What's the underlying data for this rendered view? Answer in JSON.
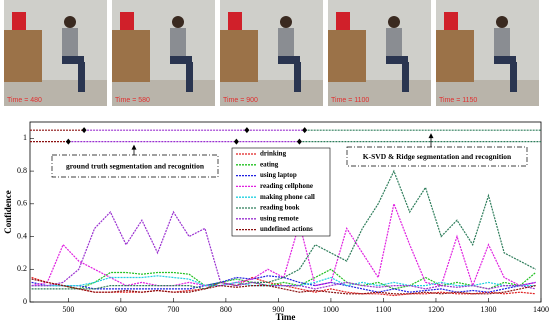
{
  "frames": [
    {
      "label": "Time = 480"
    },
    {
      "label": "Time = 580"
    },
    {
      "label": "Time = 900"
    },
    {
      "label": "Time = 1100"
    },
    {
      "label": "Time = 1150"
    }
  ],
  "chart_data": {
    "type": "line",
    "x_label": "Time",
    "y_label": "Confidence",
    "xlim": [
      427,
      1400
    ],
    "xticks": [
      500,
      600,
      700,
      800,
      900,
      1000,
      1100,
      1200,
      1300,
      1400
    ],
    "ylim": [
      0,
      1.1
    ],
    "yticks": [
      0,
      0.2,
      0.4,
      0.6,
      0.8,
      1
    ],
    "x": [
      430,
      460,
      490,
      520,
      550,
      580,
      610,
      640,
      670,
      700,
      730,
      760,
      790,
      820,
      850,
      880,
      910,
      940,
      970,
      1000,
      1030,
      1060,
      1090,
      1120,
      1150,
      1180,
      1210,
      1240,
      1270,
      1300,
      1330,
      1360,
      1390
    ],
    "series": [
      {
        "name": "drinking",
        "color": "#e02020",
        "values": [
          0.15,
          0.12,
          0.1,
          0.08,
          0.06,
          0.06,
          0.06,
          0.06,
          0.07,
          0.06,
          0.07,
          0.08,
          0.12,
          0.1,
          0.15,
          0.12,
          0.1,
          0.08,
          0.06,
          0.08,
          0.06,
          0.05,
          0.05,
          0.04,
          0.05,
          0.05,
          0.06,
          0.05,
          0.05,
          0.06,
          0.05,
          0.06,
          0.05
        ]
      },
      {
        "name": "eating",
        "color": "#22c022",
        "values": [
          0.1,
          0.1,
          0.1,
          0.08,
          0.12,
          0.18,
          0.18,
          0.17,
          0.18,
          0.18,
          0.17,
          0.1,
          0.12,
          0.14,
          0.12,
          0.1,
          0.12,
          0.1,
          0.15,
          0.2,
          0.12,
          0.1,
          0.12,
          0.08,
          0.1,
          0.15,
          0.1,
          0.12,
          0.1,
          0.08,
          0.12,
          0.1,
          0.18
        ]
      },
      {
        "name": "using laptop",
        "color": "#2020e0",
        "values": [
          0.12,
          0.1,
          0.1,
          0.1,
          0.08,
          0.08,
          0.08,
          0.08,
          0.08,
          0.08,
          0.08,
          0.1,
          0.12,
          0.15,
          0.14,
          0.16,
          0.15,
          0.12,
          0.1,
          0.12,
          0.1,
          0.08,
          0.06,
          0.08,
          0.06,
          0.07,
          0.08,
          0.06,
          0.07,
          0.06,
          0.08,
          0.1,
          0.12
        ]
      },
      {
        "name": "reading cellphone",
        "color": "#e020e0",
        "values": [
          0.1,
          0.12,
          0.35,
          0.25,
          0.2,
          0.15,
          0.1,
          0.12,
          0.1,
          0.1,
          0.12,
          0.1,
          0.1,
          0.12,
          0.14,
          0.2,
          0.15,
          0.48,
          0.1,
          0.12,
          0.45,
          0.3,
          0.15,
          0.6,
          0.35,
          0.12,
          0.1,
          0.4,
          0.1,
          0.35,
          0.15,
          0.1,
          0.12
        ]
      },
      {
        "name": "making phone call",
        "color": "#20d0e0",
        "values": [
          0.1,
          0.1,
          0.1,
          0.1,
          0.12,
          0.15,
          0.15,
          0.15,
          0.16,
          0.15,
          0.14,
          0.1,
          0.1,
          0.12,
          0.1,
          0.1,
          0.1,
          0.1,
          0.12,
          0.15,
          0.1,
          0.12,
          0.1,
          0.12,
          0.1,
          0.1,
          0.12,
          0.1,
          0.1,
          0.12,
          0.1,
          0.1,
          0.1
        ]
      },
      {
        "name": "reading book",
        "color": "#2e7d5b",
        "values": [
          0.08,
          0.08,
          0.08,
          0.08,
          0.08,
          0.1,
          0.1,
          0.1,
          0.1,
          0.1,
          0.1,
          0.08,
          0.12,
          0.1,
          0.12,
          0.12,
          0.15,
          0.2,
          0.35,
          0.3,
          0.25,
          0.45,
          0.6,
          0.8,
          0.55,
          0.7,
          0.4,
          0.5,
          0.35,
          0.65,
          0.3,
          0.25,
          0.2
        ]
      },
      {
        "name": "using remote",
        "color": "#9a30d0",
        "values": [
          0.1,
          0.1,
          0.12,
          0.2,
          0.45,
          0.55,
          0.35,
          0.5,
          0.3,
          0.55,
          0.4,
          0.45,
          0.12,
          0.1,
          0.12,
          0.1,
          0.1,
          0.1,
          0.08,
          0.1,
          0.12,
          0.1,
          0.09,
          0.1,
          0.1,
          0.08,
          0.1,
          0.09,
          0.1,
          0.08,
          0.1,
          0.1,
          0.08
        ]
      },
      {
        "name": "undefined actions",
        "color": "#8b1010",
        "values": [
          0.14,
          0.12,
          0.1,
          0.08,
          0.06,
          0.06,
          0.07,
          0.06,
          0.07,
          0.06,
          0.06,
          0.08,
          0.1,
          0.09,
          0.1,
          0.1,
          0.08,
          0.06,
          0.07,
          0.06,
          0.05,
          0.05,
          0.06,
          0.05,
          0.05,
          0.06,
          0.05,
          0.06,
          0.05,
          0.05,
          0.06,
          0.08,
          0.1
        ]
      }
    ],
    "segmentations": [
      {
        "label": "K-SVD & Ridge segmentation and recognition",
        "level": 1.05,
        "breaks": [
          530,
          840,
          950
        ],
        "colors": [
          "#8b1010",
          "#9a30d0",
          "#9a30d0",
          "#2e7d5b"
        ]
      },
      {
        "label": "ground truth segmentation and recognition",
        "level": 0.98,
        "breaks": [
          500,
          820,
          940
        ],
        "colors": [
          "#8b1010",
          "#9a30d0",
          "#9a30d0",
          "#2e7d5b"
        ]
      }
    ]
  }
}
